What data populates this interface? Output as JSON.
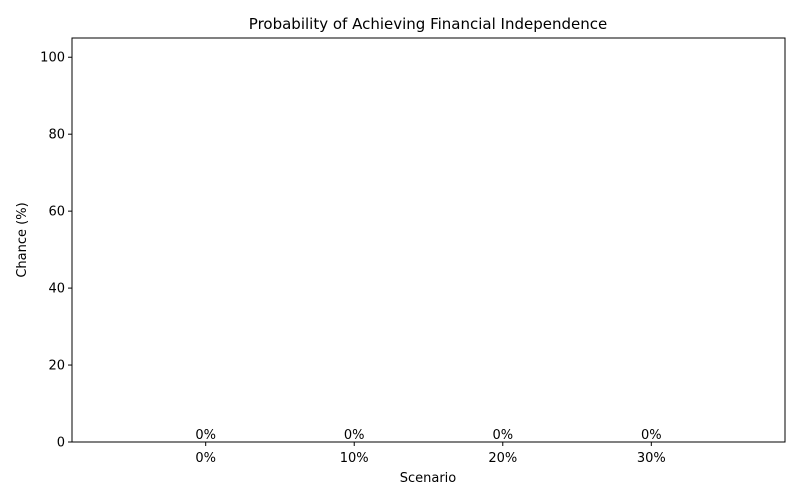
{
  "chart_data": {
    "type": "bar",
    "title": "Probability of Achieving Financial Independence",
    "xlabel": "Scenario",
    "ylabel": "Chance (%)",
    "categories": [
      "0%",
      "10%",
      "20%",
      "30%"
    ],
    "values": [
      0,
      0,
      0,
      0
    ],
    "data_labels": [
      "0%",
      "0%",
      "0%",
      "0%"
    ],
    "ylim": [
      0,
      105
    ],
    "yticks": [
      0,
      20,
      40,
      60,
      80,
      100
    ],
    "bar_colors": [
      "#2ca02c",
      "#2ca02c",
      "#2ca02c",
      "#2ca02c"
    ],
    "grid": false,
    "legend": "none"
  }
}
